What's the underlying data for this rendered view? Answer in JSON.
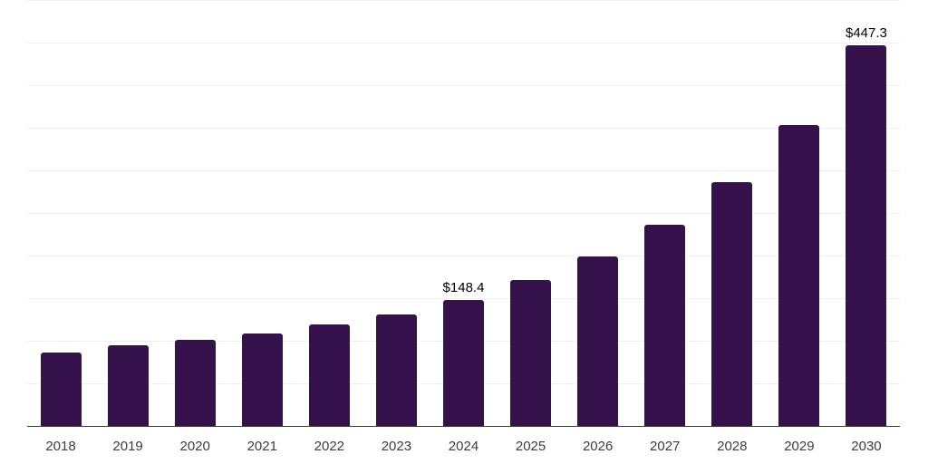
{
  "chart_data": {
    "type": "bar",
    "title": "",
    "xlabel": "",
    "ylabel": "",
    "categories": [
      "2018",
      "2019",
      "2020",
      "2021",
      "2022",
      "2023",
      "2024",
      "2025",
      "2026",
      "2027",
      "2028",
      "2029",
      "2030"
    ],
    "values": [
      86,
      95,
      101,
      109,
      119,
      131,
      148.4,
      171,
      199,
      236,
      286,
      353,
      447.3
    ],
    "value_prefix": "$",
    "annotations": [
      {
        "category": "2024",
        "label": "$148.4"
      },
      {
        "category": "2030",
        "label": "$447.3"
      }
    ],
    "ylim": [
      0,
      500
    ],
    "grid_step": 50,
    "grid": true,
    "y_axis_labels_visible": false,
    "legend": "none",
    "colors": {
      "bar": "#35124B",
      "gridline": "#F0F0F0",
      "axis": "#3A3A3A",
      "tick_label": "#3C3C3C",
      "annotation": "#000000",
      "background": "#FFFFFF"
    }
  }
}
